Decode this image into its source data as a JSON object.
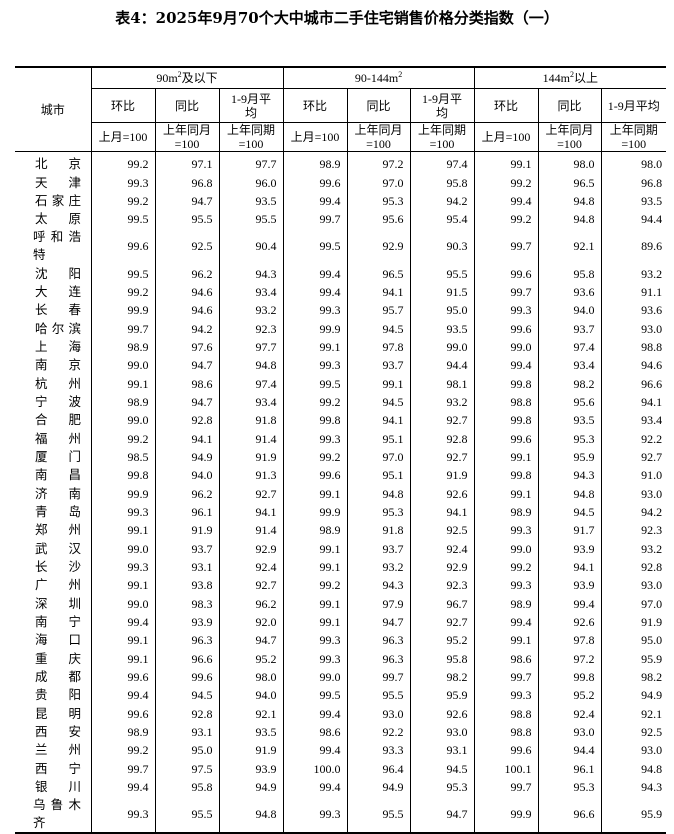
{
  "title": "表4：2025年9月70个大中城市二手住宅销售价格分类指数（一）",
  "header": {
    "city": "城市",
    "groups": [
      {
        "label": "90m",
        "sup": "2",
        "suffix": "及以下"
      },
      {
        "label": "90-144m",
        "sup": "2",
        "suffix": ""
      },
      {
        "label": "144m",
        "sup": "2",
        "suffix": "以上"
      }
    ],
    "sub": [
      "环比",
      "同比",
      "1-9月平均"
    ],
    "base": [
      "上月=100",
      "上年同月=100",
      "上年同期=100"
    ]
  },
  "rows": [
    [
      "北京",
      "99.2",
      "97.1",
      "97.7",
      "98.9",
      "97.2",
      "97.4",
      "99.1",
      "98.0",
      "98.0"
    ],
    [
      "天津",
      "99.3",
      "96.8",
      "96.0",
      "99.6",
      "97.0",
      "95.8",
      "99.2",
      "96.5",
      "96.8"
    ],
    [
      "石家庄",
      "99.2",
      "94.7",
      "93.5",
      "99.4",
      "95.3",
      "94.2",
      "99.4",
      "94.8",
      "93.5"
    ],
    [
      "太原",
      "99.5",
      "95.5",
      "95.5",
      "99.7",
      "95.6",
      "95.4",
      "99.2",
      "94.8",
      "94.4"
    ],
    [
      "呼和浩特",
      "99.6",
      "92.5",
      "90.4",
      "99.5",
      "92.9",
      "90.3",
      "99.7",
      "92.1",
      "89.6"
    ],
    [
      "沈阳",
      "99.5",
      "96.2",
      "94.3",
      "99.4",
      "96.5",
      "95.5",
      "99.6",
      "95.8",
      "93.2"
    ],
    [
      "大连",
      "99.2",
      "94.6",
      "93.4",
      "99.4",
      "94.1",
      "91.5",
      "99.7",
      "93.6",
      "91.1"
    ],
    [
      "长春",
      "99.9",
      "94.6",
      "93.2",
      "99.3",
      "95.7",
      "95.0",
      "99.3",
      "94.0",
      "93.6"
    ],
    [
      "哈尔滨",
      "99.7",
      "94.2",
      "92.3",
      "99.9",
      "94.5",
      "93.5",
      "99.6",
      "93.7",
      "93.0"
    ],
    [
      "上海",
      "98.9",
      "97.6",
      "97.7",
      "99.1",
      "97.8",
      "99.0",
      "99.0",
      "97.4",
      "98.8"
    ],
    [
      "南京",
      "99.0",
      "94.7",
      "94.8",
      "99.3",
      "93.7",
      "94.4",
      "99.4",
      "93.4",
      "94.6"
    ],
    [
      "杭州",
      "99.1",
      "98.6",
      "97.4",
      "99.5",
      "99.1",
      "98.1",
      "99.8",
      "98.2",
      "96.6"
    ],
    [
      "宁波",
      "98.9",
      "94.7",
      "93.4",
      "99.2",
      "94.5",
      "93.2",
      "98.8",
      "95.6",
      "94.1"
    ],
    [
      "合肥",
      "99.0",
      "92.8",
      "91.8",
      "99.8",
      "94.1",
      "92.7",
      "99.8",
      "93.5",
      "93.4"
    ],
    [
      "福州",
      "99.2",
      "94.1",
      "91.4",
      "99.3",
      "95.1",
      "92.8",
      "99.6",
      "95.3",
      "92.2"
    ],
    [
      "厦门",
      "98.5",
      "94.9",
      "91.9",
      "99.2",
      "97.0",
      "92.7",
      "99.1",
      "95.9",
      "92.7"
    ],
    [
      "南昌",
      "99.8",
      "94.0",
      "91.3",
      "99.6",
      "95.1",
      "91.9",
      "99.8",
      "94.3",
      "91.0"
    ],
    [
      "济南",
      "99.9",
      "96.2",
      "92.7",
      "99.1",
      "94.8",
      "92.6",
      "99.1",
      "94.8",
      "93.0"
    ],
    [
      "青岛",
      "99.3",
      "96.1",
      "94.1",
      "99.9",
      "95.3",
      "94.1",
      "98.9",
      "94.5",
      "94.2"
    ],
    [
      "郑州",
      "99.1",
      "91.9",
      "91.4",
      "98.9",
      "91.8",
      "92.5",
      "99.3",
      "91.7",
      "92.3"
    ],
    [
      "武汉",
      "99.0",
      "93.7",
      "92.9",
      "99.1",
      "93.7",
      "92.4",
      "99.0",
      "93.9",
      "93.2"
    ],
    [
      "长沙",
      "99.3",
      "93.1",
      "92.4",
      "99.1",
      "93.2",
      "92.9",
      "99.2",
      "94.1",
      "92.8"
    ],
    [
      "广州",
      "99.1",
      "93.8",
      "92.7",
      "99.2",
      "94.3",
      "92.3",
      "99.3",
      "93.9",
      "93.0"
    ],
    [
      "深圳",
      "99.0",
      "98.3",
      "96.2",
      "99.1",
      "97.9",
      "96.7",
      "98.9",
      "99.4",
      "97.0"
    ],
    [
      "南宁",
      "99.4",
      "93.9",
      "92.0",
      "99.1",
      "94.7",
      "92.7",
      "99.4",
      "92.6",
      "91.9"
    ],
    [
      "海口",
      "99.1",
      "96.3",
      "94.7",
      "99.3",
      "96.3",
      "95.2",
      "99.1",
      "97.8",
      "95.0"
    ],
    [
      "重庆",
      "99.1",
      "96.6",
      "95.2",
      "99.3",
      "96.3",
      "95.8",
      "98.6",
      "97.2",
      "95.9"
    ],
    [
      "成都",
      "99.6",
      "99.6",
      "98.0",
      "99.0",
      "99.7",
      "98.2",
      "99.7",
      "99.8",
      "98.2"
    ],
    [
      "贵阳",
      "99.4",
      "94.5",
      "94.0",
      "99.5",
      "95.5",
      "95.9",
      "99.3",
      "95.2",
      "94.9"
    ],
    [
      "昆明",
      "99.6",
      "92.8",
      "92.1",
      "99.4",
      "93.0",
      "92.6",
      "98.8",
      "92.4",
      "92.1"
    ],
    [
      "西安",
      "98.9",
      "93.1",
      "93.5",
      "98.6",
      "92.2",
      "93.0",
      "98.8",
      "93.0",
      "92.5"
    ],
    [
      "兰州",
      "99.2",
      "95.0",
      "91.9",
      "99.4",
      "93.3",
      "93.1",
      "99.6",
      "94.4",
      "93.0"
    ],
    [
      "西宁",
      "99.7",
      "97.5",
      "93.9",
      "100.0",
      "96.4",
      "94.5",
      "100.1",
      "96.1",
      "94.8"
    ],
    [
      "银川",
      "99.4",
      "95.8",
      "94.9",
      "99.4",
      "94.9",
      "95.3",
      "99.7",
      "95.3",
      "94.3"
    ],
    [
      "乌鲁木齐",
      "99.3",
      "95.5",
      "94.8",
      "99.3",
      "95.5",
      "94.7",
      "99.9",
      "96.6",
      "95.9"
    ]
  ]
}
